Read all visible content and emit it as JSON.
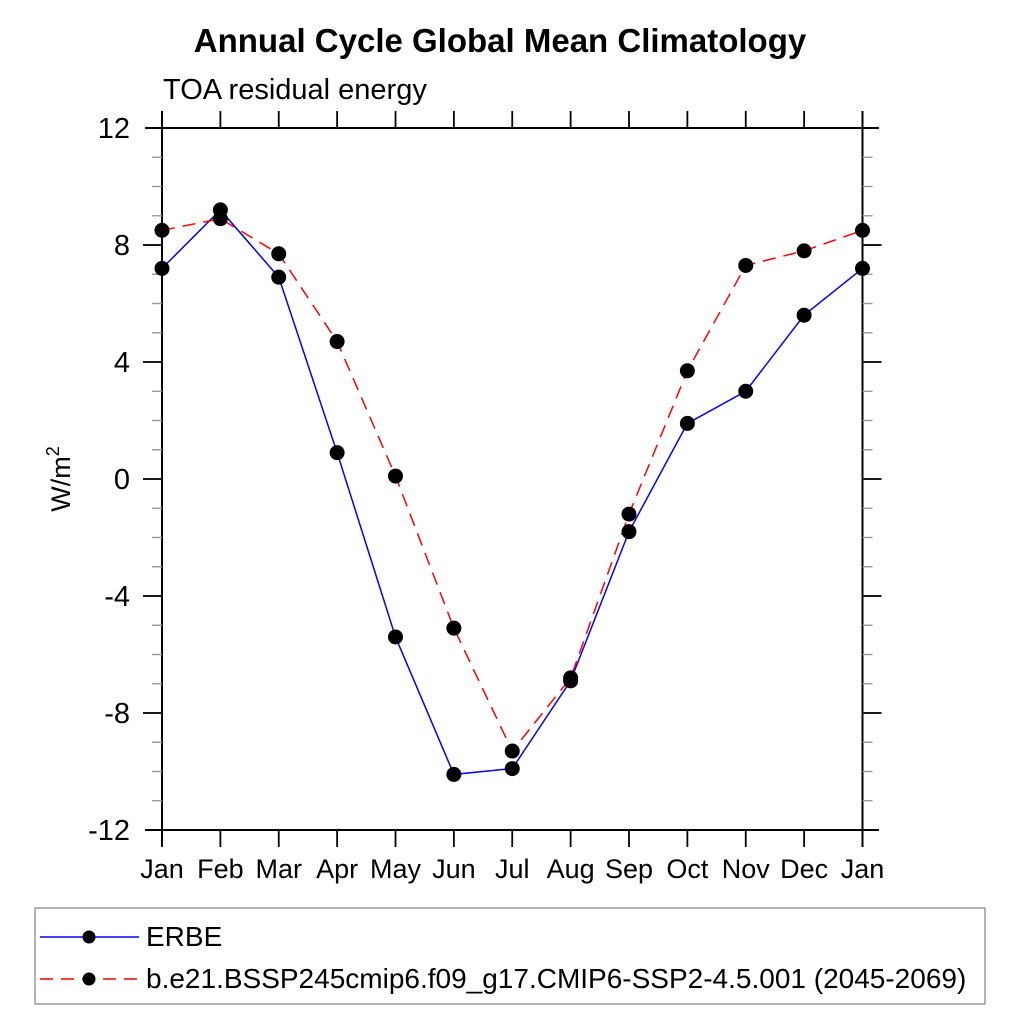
{
  "chart_data": {
    "type": "line",
    "title": "Annual Cycle Global Mean Climatology",
    "subtitle": "TOA residual energy",
    "ylabel": "W/m",
    "ylabel_exponent": "2",
    "categories": [
      "Jan",
      "Feb",
      "Mar",
      "Apr",
      "May",
      "Jun",
      "Jul",
      "Aug",
      "Sep",
      "Oct",
      "Nov",
      "Dec",
      "Jan"
    ],
    "ylim": [
      -12,
      12
    ],
    "ytick_major": [
      12,
      8,
      4,
      0,
      -4,
      -8,
      -12
    ],
    "ytick_major_labels": [
      "12",
      "8",
      "4",
      "0",
      "-4",
      "-8",
      "-12"
    ],
    "ytick_minor_step": 1,
    "grid": false,
    "legend_position": "bottom-outside",
    "axis_color": "#000000",
    "minor_tick_color": "#999999",
    "legend_border_color": "#999999",
    "marker_color": "#000000",
    "series": [
      {
        "name": "ERBE",
        "color": "#0000ff",
        "style": "solid",
        "marker": "circle",
        "values": [
          7.2,
          9.2,
          6.9,
          0.9,
          -5.4,
          -10.1,
          -9.9,
          -6.9,
          -1.8,
          1.9,
          3.0,
          5.6,
          7.2
        ]
      },
      {
        "name": "b.e21.BSSP245cmip6.f09_g17.CMIP6-SSP2-4.5.001 (2045-2069)",
        "color": "#ff0000",
        "style": "dashed",
        "marker": "circle",
        "values": [
          8.5,
          8.9,
          7.7,
          4.7,
          0.1,
          -5.1,
          -9.3,
          -6.8,
          -1.2,
          3.7,
          7.3,
          7.8,
          8.5
        ]
      }
    ]
  }
}
